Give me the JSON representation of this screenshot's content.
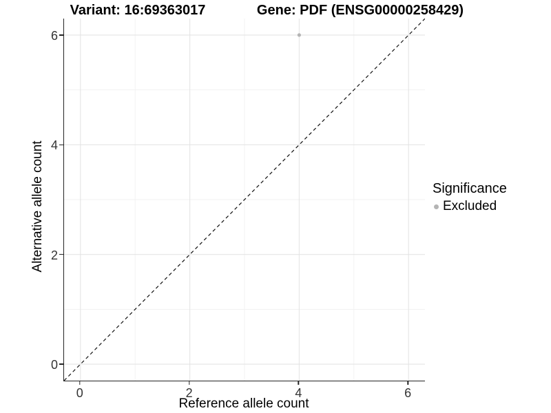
{
  "header": {
    "variant_title": "Variant: 16:69363017",
    "gene_title": "Gene: PDF (ENSG00000258429)"
  },
  "chart_data": {
    "type": "scatter",
    "xlabel": "Reference allele count",
    "ylabel": "Alternative allele count",
    "x_ticks": [
      0,
      2,
      4,
      6
    ],
    "y_ticks": [
      0,
      2,
      4,
      6
    ],
    "xlim": [
      -0.3,
      6.3
    ],
    "ylim": [
      -0.3,
      6.3
    ],
    "grid": {
      "major": true,
      "minor": true
    },
    "reference_line": {
      "type": "identity",
      "style": "dashed",
      "x1": -0.3,
      "y1": -0.3,
      "x2": 6.3,
      "y2": 6.3
    },
    "series": [
      {
        "name": "Excluded",
        "color": "#b4b4b4",
        "points": [
          {
            "x": 4,
            "y": 6
          }
        ]
      }
    ],
    "legend": {
      "title": "Significance",
      "position": "right",
      "entries": [
        {
          "label": "Excluded",
          "color": "#b4b4b4",
          "marker": "circle"
        }
      ]
    }
  },
  "colors": {
    "background": "#ffffff",
    "grid_major": "#e4e4e4",
    "grid_minor": "#f1f1f1",
    "axis_line": "#222222",
    "tick_label": "#333333",
    "dashed_line": "#111111",
    "title": "#000000"
  }
}
